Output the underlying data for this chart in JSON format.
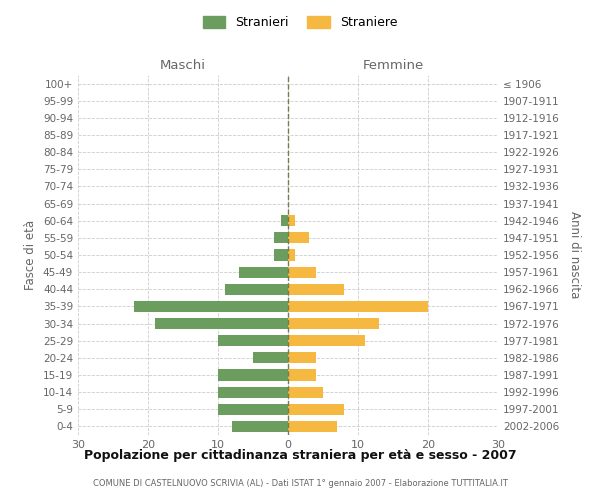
{
  "age_groups": [
    "0-4",
    "5-9",
    "10-14",
    "15-19",
    "20-24",
    "25-29",
    "30-34",
    "35-39",
    "40-44",
    "45-49",
    "50-54",
    "55-59",
    "60-64",
    "65-69",
    "70-74",
    "75-79",
    "80-84",
    "85-89",
    "90-94",
    "95-99",
    "100+"
  ],
  "birth_years": [
    "2002-2006",
    "1997-2001",
    "1992-1996",
    "1987-1991",
    "1982-1986",
    "1977-1981",
    "1972-1976",
    "1967-1971",
    "1962-1966",
    "1957-1961",
    "1952-1956",
    "1947-1951",
    "1942-1946",
    "1937-1941",
    "1932-1936",
    "1927-1931",
    "1922-1926",
    "1917-1921",
    "1912-1916",
    "1907-1911",
    "≤ 1906"
  ],
  "males": [
    8,
    10,
    10,
    10,
    5,
    10,
    19,
    22,
    9,
    7,
    2,
    2,
    1,
    0,
    0,
    0,
    0,
    0,
    0,
    0,
    0
  ],
  "females": [
    7,
    8,
    5,
    4,
    4,
    11,
    13,
    20,
    8,
    4,
    1,
    3,
    1,
    0,
    0,
    0,
    0,
    0,
    0,
    0,
    0
  ],
  "male_color": "#6b9e5e",
  "female_color": "#f5b942",
  "grid_color": "#cccccc",
  "center_line_color": "#7a7a50",
  "title": "Popolazione per cittadinanza straniera per età e sesso - 2007",
  "subtitle": "COMUNE DI CASTELNUOVO SCRIVIA (AL) - Dati ISTAT 1° gennaio 2007 - Elaborazione TUTTITALIA.IT",
  "xlabel_left": "Maschi",
  "xlabel_right": "Femmine",
  "ylabel_left": "Fasce di età",
  "ylabel_right": "Anni di nascita",
  "legend_male": "Stranieri",
  "legend_female": "Straniere",
  "xlim": 30,
  "background_color": "#ffffff",
  "label_color": "#666666"
}
